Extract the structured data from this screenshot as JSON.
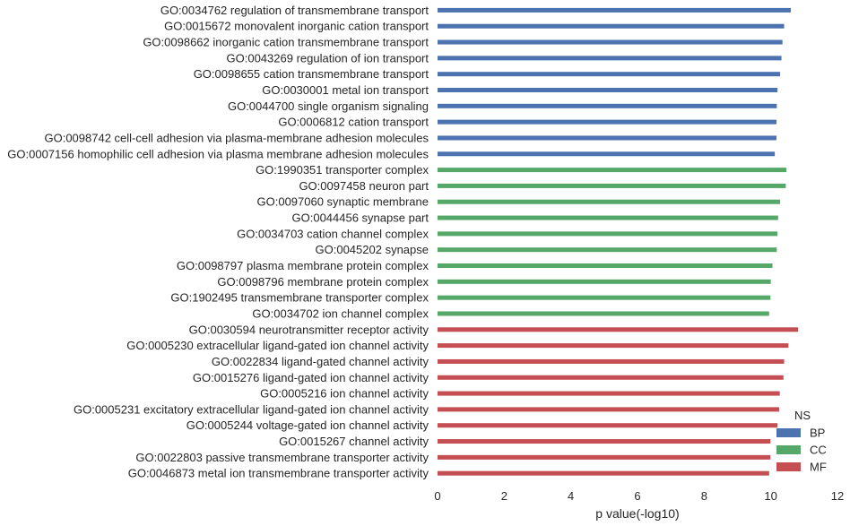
{
  "chart_data": {
    "type": "bar",
    "orientation": "horizontal",
    "categories": [
      "GO:0034762 regulation of transmembrane transport",
      "GO:0015672 monovalent inorganic cation transport",
      "GO:0098662 inorganic cation transmembrane transport",
      "GO:0043269 regulation of ion transport",
      "GO:0098655 cation transmembrane transport",
      "GO:0030001 metal ion transport",
      "GO:0044700 single organism signaling",
      "GO:0006812 cation transport",
      "GO:0098742 cell-cell adhesion via plasma-membrane adhesion molecules",
      "GO:0007156 homophilic cell adhesion via plasma membrane adhesion molecules",
      "GO:1990351 transporter complex",
      "GO:0097458 neuron part",
      "GO:0097060 synaptic membrane",
      "GO:0044456 synapse part",
      "GO:0034703 cation channel complex",
      "GO:0045202 synapse",
      "GO:0098797 plasma membrane protein complex",
      "GO:0098796 membrane protein complex",
      "GO:1902495 transmembrane transporter complex",
      "GO:0034702 ion channel complex",
      "GO:0030594 neurotransmitter receptor activity",
      "GO:0005230 extracellular ligand-gated ion channel activity",
      "GO:0022834 ligand-gated channel activity",
      "GO:0015276 ligand-gated ion channel activity",
      "GO:0005216 ion channel activity",
      "GO:0005231 excitatory extracellular ligand-gated ion channel activity",
      "GO:0005244 voltage-gated ion channel activity",
      "GO:0015267 channel activity",
      "GO:0022803 passive transmembrane transporter activity",
      "GO:0046873 metal ion transmembrane transporter activity"
    ],
    "values": [
      10.6,
      10.4,
      10.35,
      10.32,
      10.28,
      10.2,
      10.18,
      10.17,
      10.17,
      10.12,
      10.47,
      10.45,
      10.28,
      10.22,
      10.2,
      10.18,
      10.05,
      10.0,
      9.99,
      9.95,
      10.82,
      10.53,
      10.4,
      10.38,
      10.27,
      10.25,
      10.2,
      9.99,
      9.99,
      9.95
    ],
    "groups": [
      "BP",
      "BP",
      "BP",
      "BP",
      "BP",
      "BP",
      "BP",
      "BP",
      "BP",
      "BP",
      "CC",
      "CC",
      "CC",
      "CC",
      "CC",
      "CC",
      "CC",
      "CC",
      "CC",
      "CC",
      "MF",
      "MF",
      "MF",
      "MF",
      "MF",
      "MF",
      "MF",
      "MF",
      "MF",
      "MF"
    ],
    "colors": {
      "BP": "#4c72b0",
      "CC": "#55a868",
      "MF": "#c44e52"
    },
    "xlabel": "p value(-log10)",
    "ylabel": "",
    "xlim": [
      0,
      12
    ],
    "xticks": [
      0,
      2,
      4,
      6,
      8,
      10,
      12
    ],
    "grid": false,
    "legend": {
      "title": "NS",
      "placement": "lower-right",
      "entries": [
        "BP",
        "CC",
        "MF"
      ]
    }
  }
}
